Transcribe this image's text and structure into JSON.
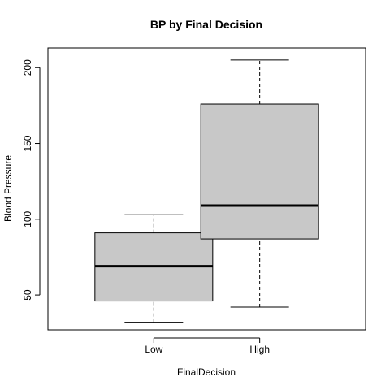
{
  "chart_data": {
    "type": "boxplot",
    "title": "BP by Final Decision",
    "xlabel": "FinalDecision",
    "ylabel": "Blood Pressure",
    "ylim": [
      27,
      213
    ],
    "yticks": [
      50,
      100,
      150,
      200
    ],
    "grid": false,
    "box_color": "#C8C8C8",
    "categories": [
      "Low",
      "High"
    ],
    "boxes": [
      {
        "category": "Low",
        "min": 32,
        "q1": 46,
        "median": 69,
        "q3": 91,
        "max": 103
      },
      {
        "category": "High",
        "min": 42,
        "q1": 87,
        "median": 109,
        "q3": 176,
        "max": 205
      }
    ]
  }
}
